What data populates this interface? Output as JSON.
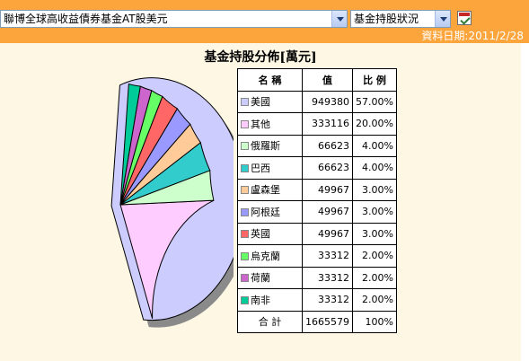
{
  "header": {
    "fund_name": "聯博全球高收益債券基金AT股美元",
    "view_name": "基金持股狀況",
    "date_text": "資料日期:2011/2/28"
  },
  "table": {
    "col_name": "名 稱",
    "col_value": "值",
    "col_ratio": "比 例",
    "total_label": "合 計",
    "total_value": "1665579",
    "total_ratio": "100%"
  },
  "chart_data": {
    "type": "pie",
    "title": "基金持股分佈[萬元]",
    "unit": "萬元",
    "slices": [
      {
        "name": "美國",
        "value": 949380,
        "percent": "57.00%",
        "color": "#ccccff"
      },
      {
        "name": "其他",
        "value": 333116,
        "percent": "20.00%",
        "color": "#ffccff"
      },
      {
        "name": "俄羅斯",
        "value": 66623,
        "percent": "4.00%",
        "color": "#ccffcc"
      },
      {
        "name": "巴西",
        "value": 66623,
        "percent": "4.00%",
        "color": "#33cccc"
      },
      {
        "name": "盧森堡",
        "value": 49967,
        "percent": "3.00%",
        "color": "#ffcc99"
      },
      {
        "name": "阿根廷",
        "value": 49967,
        "percent": "3.00%",
        "color": "#9999ff"
      },
      {
        "name": "英國",
        "value": 49967,
        "percent": "3.00%",
        "color": "#ff6666"
      },
      {
        "name": "烏克蘭",
        "value": 33312,
        "percent": "2.00%",
        "color": "#66ff66"
      },
      {
        "name": "荷蘭",
        "value": 33312,
        "percent": "2.00%",
        "color": "#cc66cc"
      },
      {
        "name": "南非",
        "value": 33312,
        "percent": "2.00%",
        "color": "#00cc99"
      }
    ],
    "explode": "美國",
    "shadow": true
  }
}
